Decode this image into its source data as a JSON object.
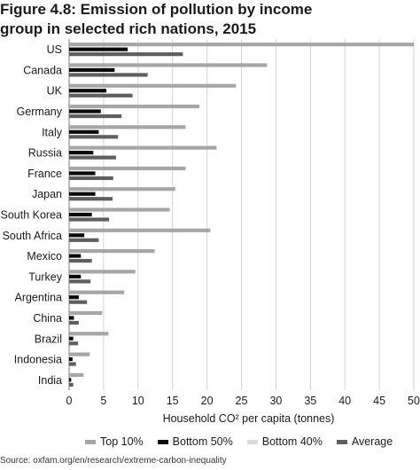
{
  "title": {
    "line1": "Figure 4.8: Emission of pollution by income",
    "line2": "group in selected rich nations, 2015"
  },
  "source": "Source: oxfam.org/en/research/extreme-carbon-inequality",
  "colors": {
    "top10": "#a6a6a6",
    "bottom50": "#0a0a0a",
    "bottom40": "#dcdcdc",
    "average": "#5f5f5f",
    "grid": "#d4d4d4",
    "axis": "#7a7a7a"
  },
  "chart_data": {
    "type": "bar",
    "orientation": "horizontal",
    "categories": [
      "US",
      "Canada",
      "UK",
      "Germany",
      "Italy",
      "Russia",
      "France",
      "Japan",
      "South Korea",
      "South Africa",
      "Mexico",
      "Turkey",
      "Argentina",
      "China",
      "Brazil",
      "Indonesia",
      "India"
    ],
    "series": [
      {
        "name": "Top 10%",
        "color": "#a6a6a6",
        "values": [
          50,
          28.7,
          24.2,
          18.9,
          16.9,
          21.4,
          16.9,
          15.4,
          14.6,
          20.5,
          12.4,
          9.6,
          8.0,
          4.8,
          5.7,
          3.0,
          2.1
        ]
      },
      {
        "name": "Bottom 50%",
        "color": "#0a0a0a",
        "values": [
          8.5,
          6.6,
          5.4,
          4.6,
          4.3,
          3.5,
          3.8,
          3.8,
          3.3,
          2.2,
          1.7,
          1.7,
          1.4,
          0.7,
          0.6,
          0.5,
          0.3
        ]
      },
      {
        "name": "Bottom 40%",
        "color": "#dcdcdc",
        "values": [
          0,
          0,
          0,
          0,
          0,
          0,
          0,
          0,
          0,
          0,
          0,
          0,
          0,
          0,
          0,
          0,
          0
        ]
      },
      {
        "name": "Average",
        "color": "#5f5f5f",
        "values": [
          16.5,
          11.4,
          9.2,
          7.6,
          7.1,
          6.8,
          6.4,
          6.3,
          5.8,
          4.3,
          3.3,
          3.1,
          2.6,
          1.4,
          1.3,
          1.0,
          0.6
        ]
      }
    ],
    "xlabel": "Household CO² per capita (tonnes)",
    "ylabel": "",
    "xlim": [
      0,
      50
    ],
    "xticks": [
      0,
      5,
      10,
      15,
      20,
      25,
      30,
      35,
      40,
      45,
      50
    ],
    "grid": "vertical",
    "legend_position": "bottom"
  }
}
